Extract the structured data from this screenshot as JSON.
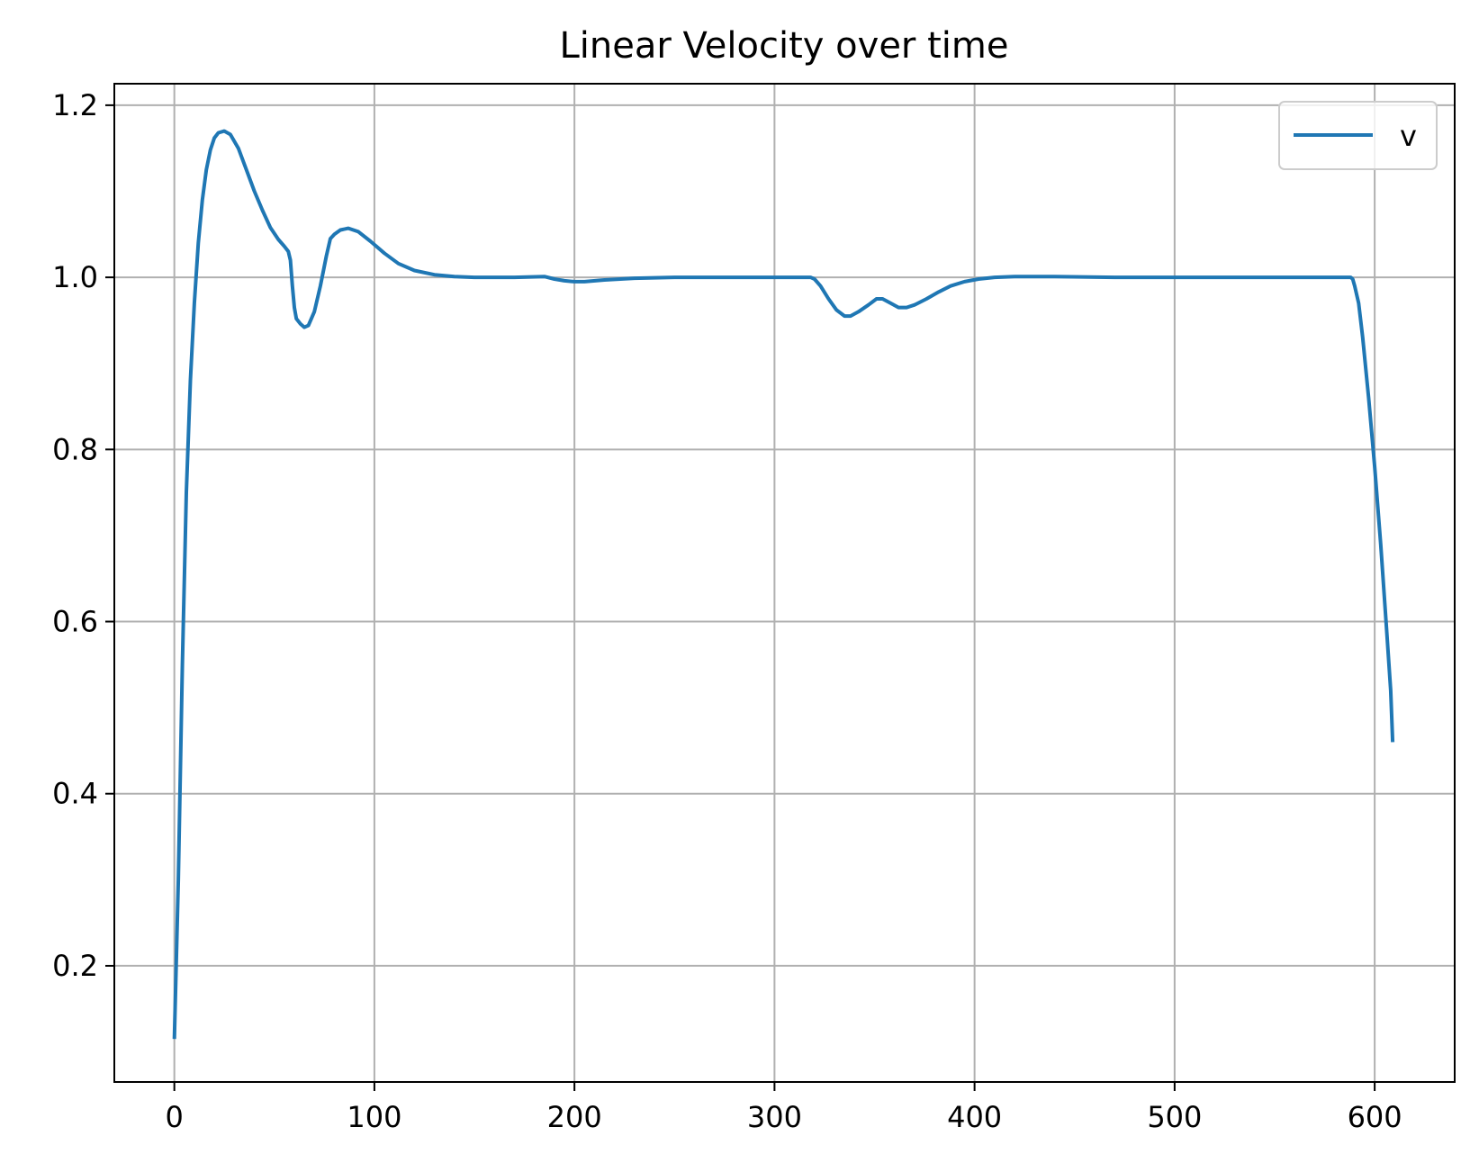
{
  "chart_data": {
    "type": "line",
    "title": "Linear Velocity over time",
    "xlabel": "",
    "ylabel": "",
    "xlim": [
      -30,
      640
    ],
    "ylim": [
      0.065,
      1.225
    ],
    "x_ticks": [
      0,
      100,
      200,
      300,
      400,
      500,
      600
    ],
    "x_tick_labels": [
      "0",
      "100",
      "200",
      "300",
      "400",
      "500",
      "600"
    ],
    "y_ticks": [
      0.2,
      0.4,
      0.6,
      0.8,
      1.0,
      1.2
    ],
    "y_tick_labels": [
      "0.2",
      "0.4",
      "0.6",
      "0.8",
      "1.0",
      "1.2"
    ],
    "grid": true,
    "legend_position": "top-right",
    "series": [
      {
        "name": "v",
        "color": "#1f77b4",
        "points": [
          [
            0,
            0.115
          ],
          [
            2,
            0.3
          ],
          [
            4,
            0.55
          ],
          [
            6,
            0.75
          ],
          [
            8,
            0.88
          ],
          [
            10,
            0.97
          ],
          [
            12,
            1.04
          ],
          [
            14,
            1.09
          ],
          [
            16,
            1.125
          ],
          [
            18,
            1.148
          ],
          [
            20,
            1.162
          ],
          [
            22,
            1.168
          ],
          [
            25,
            1.17
          ],
          [
            28,
            1.166
          ],
          [
            32,
            1.15
          ],
          [
            36,
            1.125
          ],
          [
            40,
            1.1
          ],
          [
            44,
            1.078
          ],
          [
            48,
            1.058
          ],
          [
            52,
            1.044
          ],
          [
            55,
            1.036
          ],
          [
            57,
            1.03
          ],
          [
            58,
            1.02
          ],
          [
            59,
            0.99
          ],
          [
            60,
            0.965
          ],
          [
            61,
            0.952
          ],
          [
            63,
            0.946
          ],
          [
            65,
            0.942
          ],
          [
            67,
            0.944
          ],
          [
            70,
            0.96
          ],
          [
            73,
            0.99
          ],
          [
            76,
            1.025
          ],
          [
            78,
            1.045
          ],
          [
            80,
            1.05
          ],
          [
            83,
            1.055
          ],
          [
            87,
            1.057
          ],
          [
            92,
            1.053
          ],
          [
            98,
            1.042
          ],
          [
            105,
            1.028
          ],
          [
            112,
            1.016
          ],
          [
            120,
            1.008
          ],
          [
            130,
            1.003
          ],
          [
            140,
            1.001
          ],
          [
            150,
            1.0
          ],
          [
            170,
            1.0
          ],
          [
            185,
            1.001
          ],
          [
            190,
            0.998
          ],
          [
            195,
            0.996
          ],
          [
            200,
            0.995
          ],
          [
            205,
            0.995
          ],
          [
            215,
            0.997
          ],
          [
            230,
            0.999
          ],
          [
            250,
            1.0
          ],
          [
            280,
            1.0
          ],
          [
            310,
            1.0
          ],
          [
            318,
            1.0
          ],
          [
            320,
            0.998
          ],
          [
            323,
            0.99
          ],
          [
            327,
            0.975
          ],
          [
            331,
            0.962
          ],
          [
            335,
            0.955
          ],
          [
            338,
            0.955
          ],
          [
            342,
            0.96
          ],
          [
            347,
            0.968
          ],
          [
            351,
            0.975
          ],
          [
            354,
            0.975
          ],
          [
            358,
            0.97
          ],
          [
            362,
            0.965
          ],
          [
            366,
            0.965
          ],
          [
            370,
            0.968
          ],
          [
            376,
            0.975
          ],
          [
            382,
            0.983
          ],
          [
            388,
            0.99
          ],
          [
            395,
            0.995
          ],
          [
            402,
            0.998
          ],
          [
            410,
            1.0
          ],
          [
            420,
            1.001
          ],
          [
            440,
            1.001
          ],
          [
            470,
            1.0
          ],
          [
            500,
            1.0
          ],
          [
            550,
            1.0
          ],
          [
            585,
            1.0
          ],
          [
            588,
            1.0
          ],
          [
            589,
            0.998
          ],
          [
            590,
            0.99
          ],
          [
            592,
            0.97
          ],
          [
            594,
            0.93
          ],
          [
            597,
            0.86
          ],
          [
            600,
            0.78
          ],
          [
            603,
            0.69
          ],
          [
            606,
            0.59
          ],
          [
            608,
            0.52
          ],
          [
            609,
            0.46
          ]
        ]
      }
    ]
  }
}
